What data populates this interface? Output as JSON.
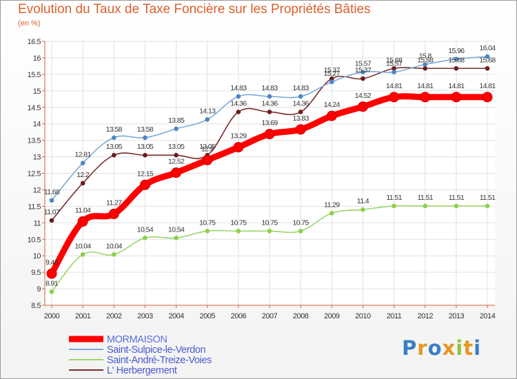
{
  "title": "Evolution du Taux de Taxe Foncière sur les Propriétés Bâties",
  "subtitle": "(en %)",
  "logo": {
    "text": "Proxiti",
    "colors": [
      "#3b7fc4",
      "#e8961e",
      "#3b7fc4",
      "#e8961e",
      "#8cc63f",
      "#e8961e",
      "#3b7fc4"
    ]
  },
  "chart_data": {
    "type": "line",
    "title": "Evolution du Taux de Taxe Foncière sur les Propriétés Bâties",
    "ylabel": "(en %)",
    "xlabel": "",
    "ylim": [
      8.5,
      16.5
    ],
    "yticks": [
      "8.5",
      "9",
      "9.5",
      "10",
      "10.5",
      "11",
      "11.5",
      "12",
      "12.5",
      "13",
      "13.5",
      "14",
      "14.5",
      "15",
      "15.5",
      "16",
      "16.5"
    ],
    "categories": [
      "2000",
      "2001",
      "2002",
      "2003",
      "2004",
      "2005",
      "2006",
      "2007",
      "2008",
      "2009",
      "2010",
      "2011",
      "2012",
      "2013",
      "2014"
    ],
    "grid": true,
    "legend": "bottom-left",
    "series": [
      {
        "name": "Saint-André-Treize-Voies",
        "color": "#9ad66b",
        "dot": "#8bd14a",
        "values": [
          8.91,
          10.04,
          10.04,
          10.54,
          10.54,
          10.75,
          10.75,
          10.75,
          10.75,
          11.29,
          11.4,
          11.51,
          11.51,
          11.51,
          11.51
        ],
        "labels": [
          "8.91",
          "10.04",
          "10.04",
          "10.54",
          "10.54",
          "10.75",
          "10.75",
          "10.75",
          "10.75",
          "11.29",
          "11.4",
          "11.51",
          "11.51",
          "11.51",
          "11.51"
        ]
      },
      {
        "name": "L' Herbergement",
        "color": "#7a2b2b",
        "dot": "#6b1d1d",
        "values": [
          11.07,
          12.2,
          13.05,
          13.05,
          13.05,
          13.05,
          14.36,
          14.36,
          14.36,
          15.37,
          15.37,
          15.68,
          15.68,
          15.68,
          15.68
        ],
        "labels": [
          "11.07",
          "12.2",
          "13.05",
          "13.05",
          "13.05",
          "13.05",
          "14.36",
          "14.36",
          "14.36",
          "15.37",
          "15.37",
          "15.68",
          "15.68",
          "15.68",
          "15.68"
        ]
      },
      {
        "name": "Saint-Sulpice-le-Verdon",
        "color": "#7aaad8",
        "dot": "#4d86c6",
        "values": [
          11.68,
          12.81,
          13.58,
          13.58,
          13.85,
          14.13,
          14.83,
          14.83,
          14.83,
          15.27,
          15.57,
          15.57,
          15.8,
          15.96,
          16.04
        ],
        "labels": [
          "11.68",
          "12.81",
          "13.58",
          "13.58",
          "13.85",
          "14.13",
          "14.83",
          "14.83",
          "14.83",
          "15.27",
          "15.57",
          "15.57",
          "15.8",
          "15.96",
          "16.04"
        ]
      },
      {
        "name": "MORMAISON",
        "color": "#ff0000",
        "dot": "#ff0000",
        "values": [
          9.46,
          11.04,
          11.27,
          12.15,
          12.52,
          12.9,
          13.29,
          13.69,
          13.83,
          14.24,
          14.52,
          14.81,
          14.81,
          14.81,
          14.81
        ],
        "labels": [
          "9.46",
          "11.04",
          "11.27",
          "12.15",
          "12.52",
          "12.9",
          "13.29",
          "13.69",
          "13.83",
          "14.24",
          "14.52",
          "14.81",
          "14.81",
          "14.81",
          "14.81"
        ]
      }
    ],
    "legend_order": [
      "MORMAISON",
      "Saint-Sulpice-le-Verdon",
      "Saint-André-Treize-Voies",
      "L' Herbergement"
    ]
  }
}
